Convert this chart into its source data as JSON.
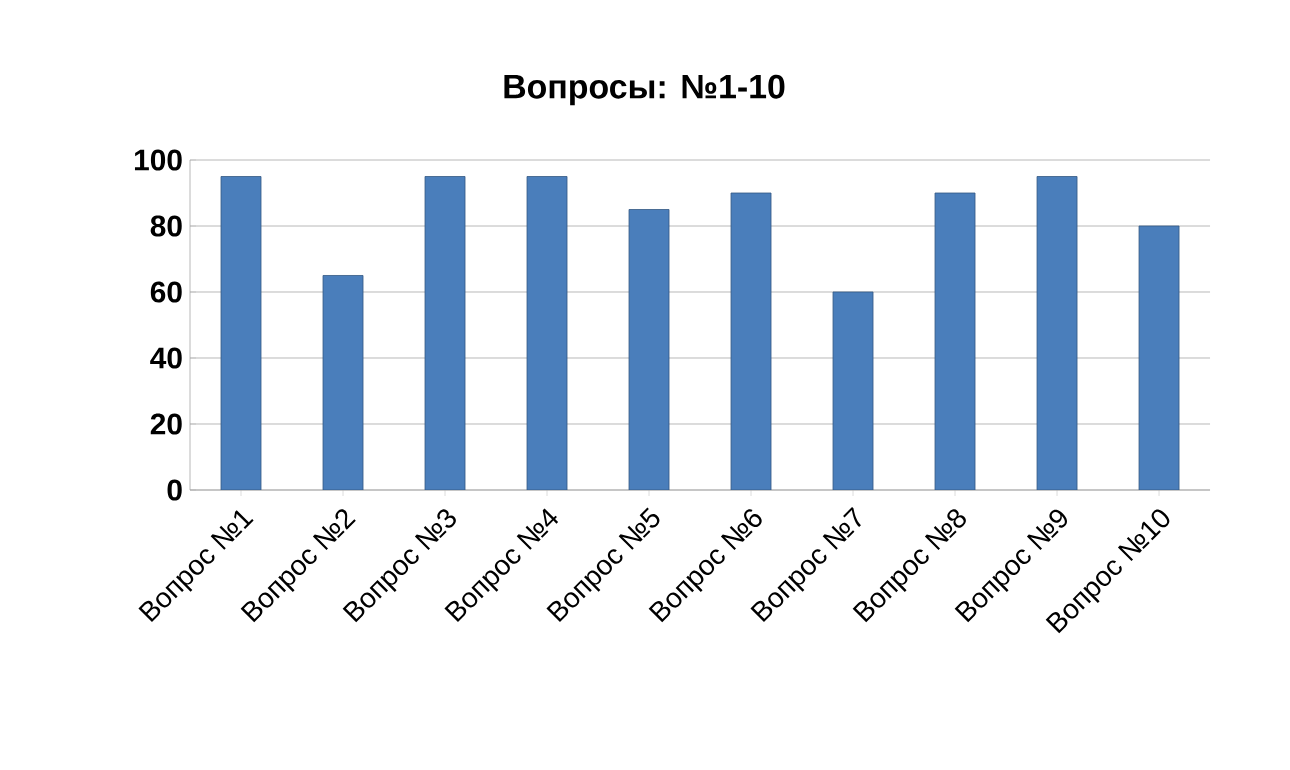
{
  "chart_data": {
    "type": "bar",
    "title": "Вопросы: №1-10",
    "categories": [
      "Вопрос №1",
      "Вопрос №2",
      "Вопрос №3",
      "Вопрос №4",
      "Вопрос №5",
      "Вопрос №6",
      "Вопрос №7",
      "Вопрос №8",
      "Вопрос №9",
      "Вопрос №10"
    ],
    "values": [
      95,
      65,
      95,
      95,
      85,
      90,
      60,
      90,
      95,
      80
    ],
    "color": "#4a7ebb",
    "ylim": [
      0,
      100
    ],
    "yticks": [
      0,
      20,
      40,
      60,
      80,
      100
    ],
    "grid": "y"
  }
}
